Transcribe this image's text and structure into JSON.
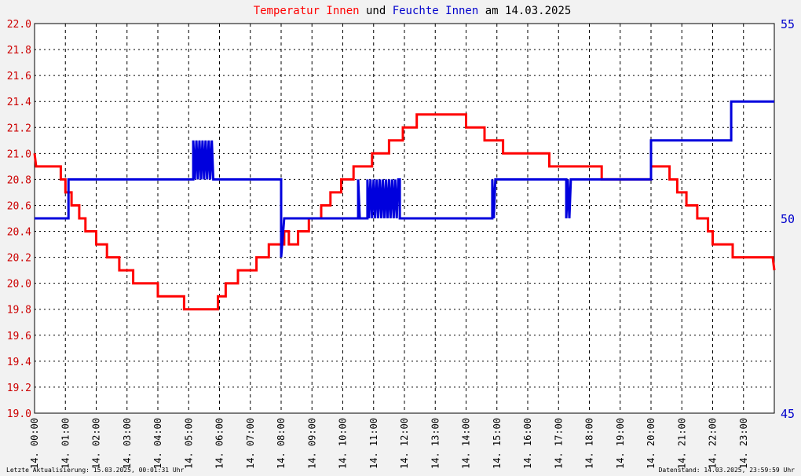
{
  "title_parts": [
    {
      "text": "Temperatur Innen",
      "color": "#ff0000"
    },
    {
      "text": " und ",
      "color": "#000000"
    },
    {
      "text": "Feuchte",
      "color": "#0000cc"
    },
    {
      "text": " Innen",
      "color": "#0000cc"
    },
    {
      "text": " am 14.03.2025",
      "color": "#000000"
    }
  ],
  "footer": {
    "left": "Letzte Aktualisierung: 15.03.2025, 00:01:31 Uhr",
    "right": "Datenstand: 14.03.2025, 23:59:59 Uhr"
  },
  "colors": {
    "temperature": "#ff0000",
    "humidity": "#0000dd",
    "left_axis_text": "#cc0000",
    "right_axis_text": "#0000cc",
    "grid": "#000000",
    "background": "#ffffff",
    "page": "#f2f2f2"
  },
  "chart_data": {
    "type": "line",
    "title": "Temperatur Innen und Feuchte Innen am 14.03.2025",
    "x_unit": "hours",
    "xlim": [
      0,
      24
    ],
    "x_tick_labels": [
      "14. 00:00",
      "14. 01:00",
      "14. 02:00",
      "14. 03:00",
      "14. 04:00",
      "14. 05:00",
      "14. 06:00",
      "14. 07:00",
      "14. 08:00",
      "14. 09:00",
      "14. 10:00",
      "14. 11:00",
      "14. 12:00",
      "14. 13:00",
      "14. 14:00",
      "14. 15:00",
      "14. 16:00",
      "14. 17:00",
      "14. 18:00",
      "14. 19:00",
      "14. 20:00",
      "14. 21:00",
      "14. 22:00",
      "14. 23:00"
    ],
    "y_left": {
      "lim": [
        19.0,
        22.0
      ],
      "ticks": [
        "19.0",
        "19.2",
        "19.4",
        "19.6",
        "19.8",
        "20.0",
        "20.2",
        "20.4",
        "20.6",
        "20.8",
        "21.0",
        "21.2",
        "21.4",
        "21.6",
        "21.8",
        "22.0"
      ]
    },
    "y_right": {
      "lim": [
        45,
        55
      ],
      "ticks": [
        "45",
        "50",
        "55"
      ]
    },
    "grid": true,
    "series": [
      {
        "name": "Temperatur Innen",
        "axis": "left",
        "points": [
          [
            0.0,
            21.0
          ],
          [
            0.05,
            20.9
          ],
          [
            0.85,
            20.9
          ],
          [
            0.85,
            20.8
          ],
          [
            1.0,
            20.8
          ],
          [
            1.0,
            20.7
          ],
          [
            1.2,
            20.7
          ],
          [
            1.2,
            20.6
          ],
          [
            1.45,
            20.6
          ],
          [
            1.45,
            20.5
          ],
          [
            1.65,
            20.5
          ],
          [
            1.65,
            20.4
          ],
          [
            2.0,
            20.4
          ],
          [
            2.0,
            20.3
          ],
          [
            2.35,
            20.3
          ],
          [
            2.35,
            20.2
          ],
          [
            2.75,
            20.2
          ],
          [
            2.75,
            20.1
          ],
          [
            3.2,
            20.1
          ],
          [
            3.2,
            20.0
          ],
          [
            4.0,
            20.0
          ],
          [
            4.0,
            19.9
          ],
          [
            4.85,
            19.9
          ],
          [
            4.85,
            19.8
          ],
          [
            5.95,
            19.8
          ],
          [
            5.95,
            19.9
          ],
          [
            6.2,
            19.9
          ],
          [
            6.2,
            20.0
          ],
          [
            6.6,
            20.0
          ],
          [
            6.6,
            20.1
          ],
          [
            7.2,
            20.1
          ],
          [
            7.2,
            20.2
          ],
          [
            7.6,
            20.2
          ],
          [
            7.6,
            20.3
          ],
          [
            8.1,
            20.3
          ],
          [
            8.1,
            20.4
          ],
          [
            8.25,
            20.4
          ],
          [
            8.25,
            20.3
          ],
          [
            8.55,
            20.3
          ],
          [
            8.55,
            20.4
          ],
          [
            8.9,
            20.4
          ],
          [
            8.9,
            20.5
          ],
          [
            9.3,
            20.5
          ],
          [
            9.3,
            20.6
          ],
          [
            9.6,
            20.6
          ],
          [
            9.6,
            20.7
          ],
          [
            9.95,
            20.7
          ],
          [
            9.95,
            20.8
          ],
          [
            10.35,
            20.8
          ],
          [
            10.35,
            20.9
          ],
          [
            10.95,
            20.9
          ],
          [
            10.95,
            21.0
          ],
          [
            11.5,
            21.0
          ],
          [
            11.5,
            21.1
          ],
          [
            11.95,
            21.1
          ],
          [
            11.95,
            21.2
          ],
          [
            12.4,
            21.2
          ],
          [
            12.4,
            21.3
          ],
          [
            14.0,
            21.3
          ],
          [
            14.0,
            21.2
          ],
          [
            14.6,
            21.2
          ],
          [
            14.6,
            21.1
          ],
          [
            15.2,
            21.1
          ],
          [
            15.2,
            21.0
          ],
          [
            16.7,
            21.0
          ],
          [
            16.7,
            20.9
          ],
          [
            18.4,
            20.9
          ],
          [
            18.4,
            20.8
          ],
          [
            20.0,
            20.8
          ],
          [
            20.0,
            20.9
          ],
          [
            20.6,
            20.9
          ],
          [
            20.6,
            20.8
          ],
          [
            20.85,
            20.8
          ],
          [
            20.85,
            20.7
          ],
          [
            21.15,
            20.7
          ],
          [
            21.15,
            20.6
          ],
          [
            21.5,
            20.6
          ],
          [
            21.5,
            20.5
          ],
          [
            21.85,
            20.5
          ],
          [
            21.85,
            20.4
          ],
          [
            22.0,
            20.4
          ],
          [
            22.0,
            20.3
          ],
          [
            22.65,
            20.3
          ],
          [
            22.65,
            20.2
          ],
          [
            23.95,
            20.2
          ],
          [
            24.0,
            20.1
          ]
        ]
      },
      {
        "name": "Feuchte Innen",
        "axis": "right",
        "points": [
          [
            0.0,
            50.0
          ],
          [
            1.1,
            50.0
          ],
          [
            1.1,
            51.0
          ],
          [
            5.15,
            51.0
          ],
          [
            5.15,
            52.0
          ],
          [
            5.2,
            51.0
          ],
          [
            5.25,
            52.0
          ],
          [
            5.3,
            51.0
          ],
          [
            5.35,
            52.0
          ],
          [
            5.4,
            51.0
          ],
          [
            5.45,
            52.0
          ],
          [
            5.5,
            51.0
          ],
          [
            5.55,
            52.0
          ],
          [
            5.6,
            51.0
          ],
          [
            5.65,
            52.0
          ],
          [
            5.7,
            51.0
          ],
          [
            5.75,
            52.0
          ],
          [
            5.8,
            51.0
          ],
          [
            8.0,
            51.0
          ],
          [
            8.0,
            49.0
          ],
          [
            8.1,
            50.0
          ],
          [
            10.5,
            50.0
          ],
          [
            10.5,
            51.0
          ],
          [
            10.55,
            50.0
          ],
          [
            10.8,
            50.0
          ],
          [
            10.8,
            51.0
          ],
          [
            10.85,
            50.0
          ],
          [
            10.9,
            51.0
          ],
          [
            10.95,
            50.0
          ],
          [
            11.0,
            51.0
          ],
          [
            11.05,
            50.0
          ],
          [
            11.1,
            51.0
          ],
          [
            11.15,
            50.0
          ],
          [
            11.2,
            51.0
          ],
          [
            11.25,
            50.0
          ],
          [
            11.3,
            51.0
          ],
          [
            11.35,
            50.0
          ],
          [
            11.4,
            51.0
          ],
          [
            11.45,
            50.0
          ],
          [
            11.5,
            51.0
          ],
          [
            11.55,
            50.0
          ],
          [
            11.6,
            51.0
          ],
          [
            11.65,
            50.0
          ],
          [
            11.7,
            51.0
          ],
          [
            11.75,
            50.0
          ],
          [
            11.8,
            51.0
          ],
          [
            11.85,
            51.0
          ],
          [
            11.85,
            50.0
          ],
          [
            14.85,
            50.0
          ],
          [
            14.85,
            51.0
          ],
          [
            14.9,
            50.0
          ],
          [
            14.95,
            51.0
          ],
          [
            17.25,
            51.0
          ],
          [
            17.25,
            50.0
          ],
          [
            17.3,
            51.0
          ],
          [
            17.35,
            50.0
          ],
          [
            17.4,
            51.0
          ],
          [
            20.0,
            51.0
          ],
          [
            20.0,
            52.0
          ],
          [
            22.6,
            52.0
          ],
          [
            22.6,
            53.0
          ],
          [
            24.0,
            53.0
          ]
        ]
      }
    ]
  }
}
